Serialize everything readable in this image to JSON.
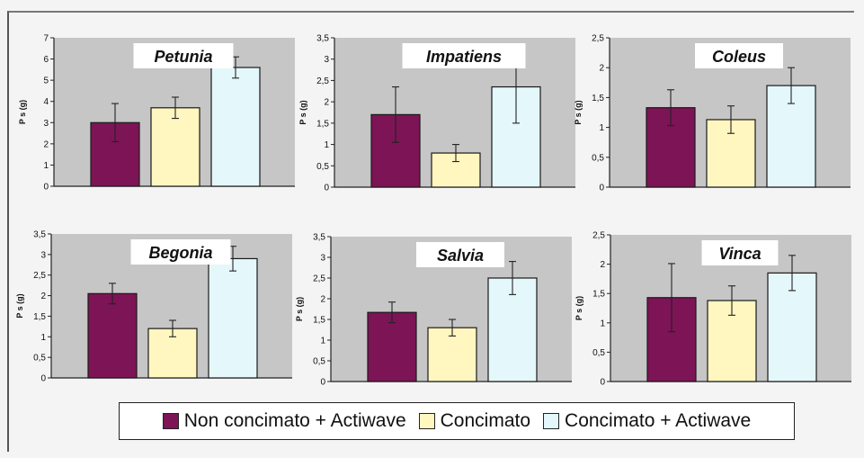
{
  "legend": {
    "items": [
      {
        "label": "Non concimato + Actiwave",
        "color": "#7d1456"
      },
      {
        "label": "Concimato",
        "color": "#fff6c0"
      },
      {
        "label": "Concimato + Actiwave",
        "color": "#e4f7fb"
      }
    ]
  },
  "chart_data": [
    {
      "type": "bar",
      "title": "Petunia",
      "ylabel": "P s (g)",
      "ylim": [
        0,
        7
      ],
      "yticks": [
        "0",
        "1",
        "2",
        "3",
        "4",
        "5",
        "6",
        "7"
      ],
      "ytick_values": [
        0,
        1,
        2,
        3,
        4,
        5,
        6,
        7
      ],
      "grid": false,
      "legend": "bottom",
      "series": [
        {
          "value": 3.0,
          "error": 0.9
        },
        {
          "value": 3.7,
          "error": 0.5
        },
        {
          "value": 5.6,
          "error": 0.5
        }
      ]
    },
    {
      "type": "bar",
      "title": "Impatiens",
      "ylabel": "P s (g)",
      "ylim": [
        0,
        3.5
      ],
      "yticks": [
        "0",
        "0,5",
        "1",
        "1,5",
        "2",
        "2,5",
        "3",
        "3,5"
      ],
      "ytick_values": [
        0,
        0.5,
        1,
        1.5,
        2,
        2.5,
        3,
        3.5
      ],
      "grid": false,
      "legend": "bottom",
      "series": [
        {
          "value": 1.7,
          "error": 0.65
        },
        {
          "value": 0.8,
          "error": 0.2
        },
        {
          "value": 2.35,
          "error": 0.85
        }
      ]
    },
    {
      "type": "bar",
      "title": "Coleus",
      "ylabel": "P s (g)",
      "ylim": [
        0,
        2.5
      ],
      "yticks": [
        "0",
        "0,5",
        "1",
        "1,5",
        "2",
        "2,5"
      ],
      "ytick_values": [
        0,
        0.5,
        1,
        1.5,
        2,
        2.5
      ],
      "grid": false,
      "legend": "bottom",
      "series": [
        {
          "value": 1.33,
          "error": 0.3
        },
        {
          "value": 1.13,
          "error": 0.23
        },
        {
          "value": 1.7,
          "error": 0.3
        }
      ]
    },
    {
      "type": "bar",
      "title": "Begonia",
      "ylabel": "P s (g)",
      "ylim": [
        0,
        3.5
      ],
      "yticks": [
        "0",
        "0,5",
        "1",
        "1,5",
        "2",
        "2,5",
        "3",
        "3,5"
      ],
      "ytick_values": [
        0,
        0.5,
        1,
        1.5,
        2,
        2.5,
        3,
        3.5
      ],
      "grid": false,
      "legend": "bottom",
      "series": [
        {
          "value": 2.05,
          "error": 0.25
        },
        {
          "value": 1.2,
          "error": 0.2
        },
        {
          "value": 2.9,
          "error": 0.3
        }
      ]
    },
    {
      "type": "bar",
      "title": "Salvia",
      "ylabel": "P s (g)",
      "ylim": [
        0,
        3.5
      ],
      "yticks": [
        "0",
        "0,5",
        "1",
        "1,5",
        "2",
        "2,5",
        "3",
        "3,5"
      ],
      "ytick_values": [
        0,
        0.5,
        1,
        1.5,
        2,
        2.5,
        3,
        3.5
      ],
      "grid": false,
      "legend": "bottom",
      "series": [
        {
          "value": 1.67,
          "error": 0.25
        },
        {
          "value": 1.3,
          "error": 0.2
        },
        {
          "value": 2.5,
          "error": 0.4
        }
      ]
    },
    {
      "type": "bar",
      "title": "Vinca",
      "ylabel": "P s (g)",
      "ylim": [
        0,
        2.5
      ],
      "yticks": [
        "0",
        "0,5",
        "1",
        "1,5",
        "2",
        "2,5"
      ],
      "ytick_values": [
        0,
        0.5,
        1,
        1.5,
        2,
        2.5
      ],
      "grid": false,
      "legend": "bottom",
      "series": [
        {
          "value": 1.43,
          "error": 0.58
        },
        {
          "value": 1.38,
          "error": 0.25
        },
        {
          "value": 1.85,
          "error": 0.3
        }
      ]
    }
  ]
}
